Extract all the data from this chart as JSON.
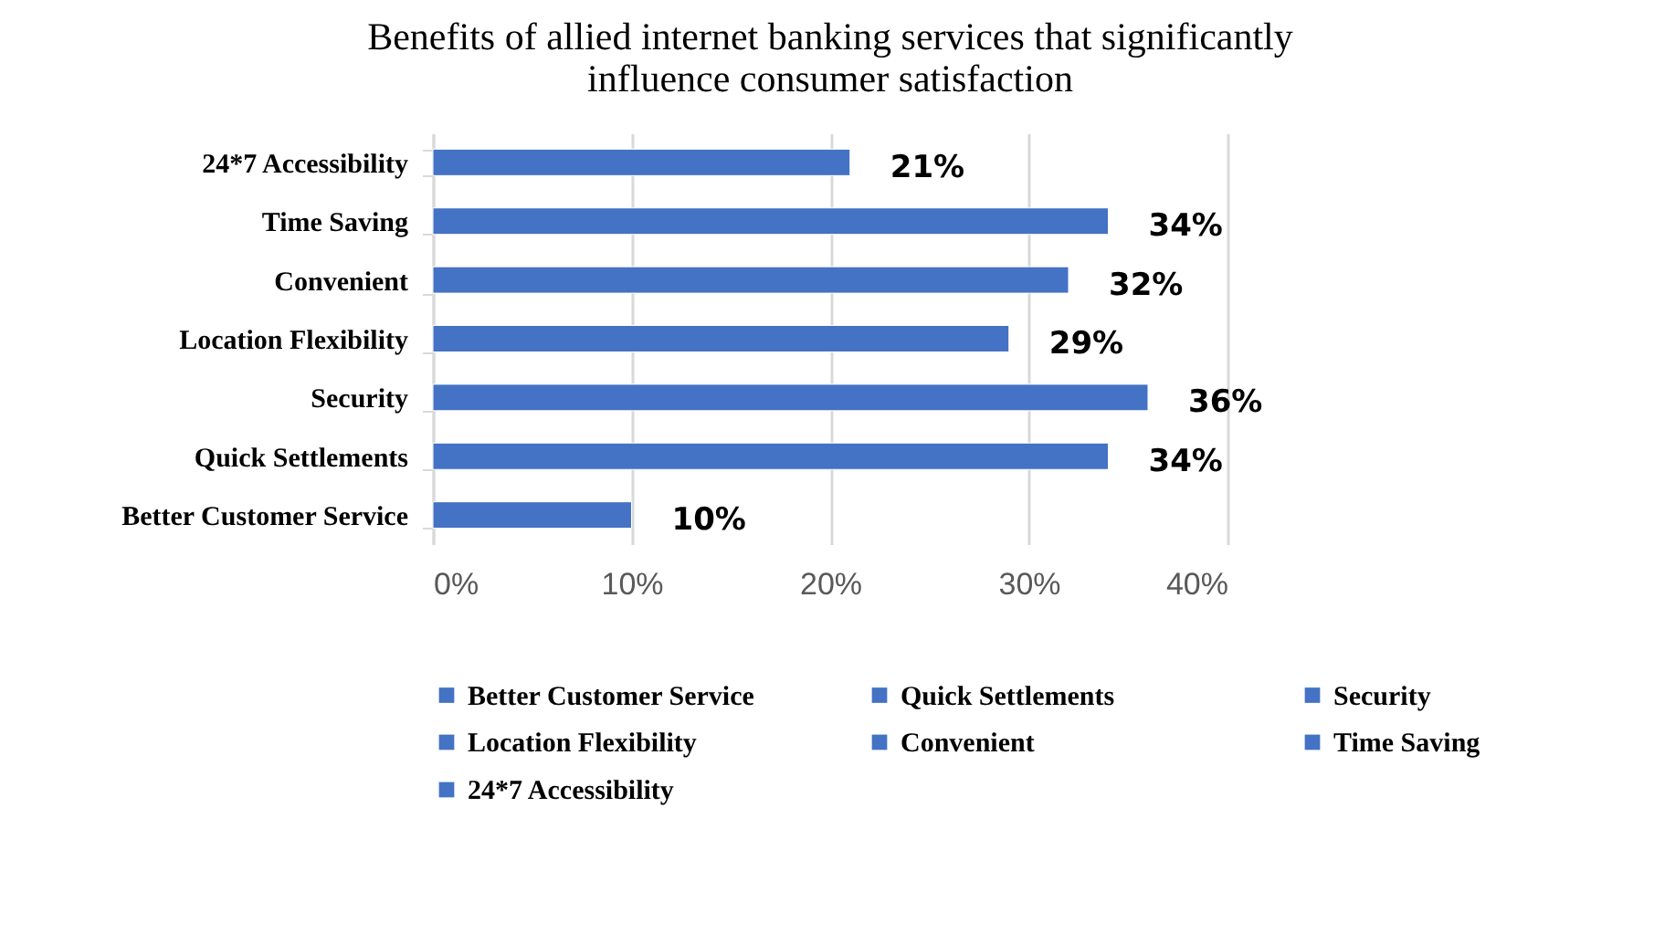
{
  "chart_data": {
    "type": "bar",
    "orientation": "horizontal",
    "title": [
      "Benefits of allied internet banking services that significantly",
      "influence consumer satisfaction"
    ],
    "categories": [
      "24*7 Accessibility",
      "Time Saving",
      "Convenient",
      "Location Flexibility",
      "Security",
      "Quick Settlements",
      "Better Customer Service"
    ],
    "series": [
      {
        "name": "Better Customer Service",
        "color": "#4472c4",
        "values": [
          null,
          null,
          null,
          null,
          null,
          null,
          10
        ],
        "value_labels": [
          null,
          null,
          null,
          null,
          null,
          null,
          "10%"
        ]
      },
      {
        "name": "Quick Settlements",
        "color": "#4472c4",
        "values": [
          null,
          null,
          null,
          null,
          null,
          34,
          null
        ],
        "value_labels": [
          null,
          null,
          null,
          null,
          null,
          "34%",
          null
        ]
      },
      {
        "name": "Security",
        "color": "#4472c4",
        "values": [
          null,
          null,
          null,
          null,
          36,
          null,
          null
        ],
        "value_labels": [
          null,
          null,
          null,
          null,
          "36%",
          null,
          null
        ]
      },
      {
        "name": "Location Flexibility",
        "color": "#4472c4",
        "values": [
          null,
          null,
          null,
          29,
          null,
          null,
          null
        ],
        "value_labels": [
          null,
          null,
          null,
          "29%",
          null,
          null,
          null
        ]
      },
      {
        "name": "Convenient",
        "color": "#4472c4",
        "values": [
          null,
          null,
          32,
          null,
          null,
          null,
          null
        ],
        "value_labels": [
          null,
          null,
          "32%",
          null,
          null,
          null,
          null
        ]
      },
      {
        "name": "Time Saving",
        "color": "#4472c4",
        "values": [
          null,
          34,
          null,
          null,
          null,
          null,
          null
        ],
        "value_labels": [
          null,
          "34%",
          null,
          null,
          null,
          null,
          null
        ]
      },
      {
        "name": "24*7 Accessibility",
        "color": "#4472c4",
        "values": [
          21,
          null,
          null,
          null,
          null,
          null,
          null
        ],
        "value_labels": [
          "21%",
          null,
          null,
          null,
          null,
          null,
          null
        ]
      }
    ],
    "xlim": [
      0,
      40
    ],
    "xticks": [
      {
        "value": 0,
        "label": "0%"
      },
      {
        "value": 10,
        "label": "10%"
      },
      {
        "value": 20,
        "label": "20%"
      },
      {
        "value": 30,
        "label": "30%"
      },
      {
        "value": 40,
        "label": "40%"
      }
    ],
    "grid": "x",
    "legend": "bottom"
  }
}
